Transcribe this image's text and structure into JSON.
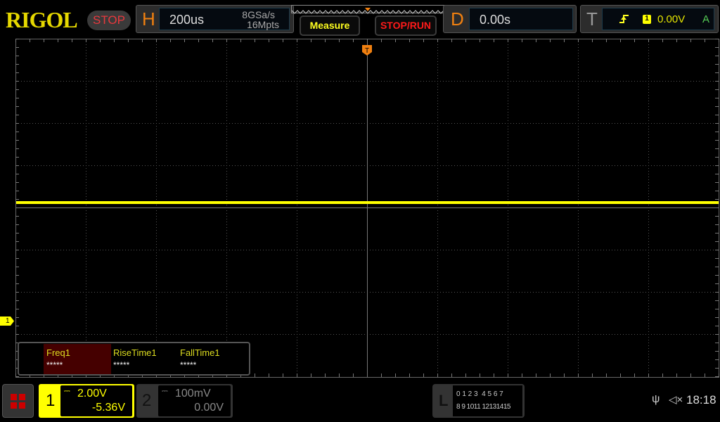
{
  "brand": "RIGOL",
  "run_state": "STOP",
  "horizontal": {
    "label": "H",
    "timebase": "200us",
    "sample_rate": "8GSa/s",
    "memory_depth": "16Mpts"
  },
  "buttons": {
    "measure": "Measure",
    "stop_run": "STOP/RUN"
  },
  "delay": {
    "label": "D",
    "value": "0.00s"
  },
  "trigger": {
    "label": "T",
    "slope_icon": "rising-edge-icon",
    "source": "1",
    "level": "0.00V",
    "mode": "A"
  },
  "measurements": [
    {
      "name": "Freq1",
      "value": "*****"
    },
    {
      "name": "RiseTime1",
      "value": "*****"
    },
    {
      "name": "FallTime1",
      "value": "*****"
    }
  ],
  "channel1": {
    "number": "1",
    "scale": "2.00V",
    "offset": "-5.36V",
    "color": "#ffff00",
    "marker": "1"
  },
  "channel2": {
    "number": "2",
    "scale": "100mV",
    "offset": "0.00V"
  },
  "logic": {
    "label": "L",
    "row1": "0 1 2 3  4 5 6 7",
    "row2": "8 9 1011 12131415"
  },
  "status": {
    "time": "18:18",
    "usb_icon": "usb-icon",
    "sound_icon": "mute-icon"
  }
}
